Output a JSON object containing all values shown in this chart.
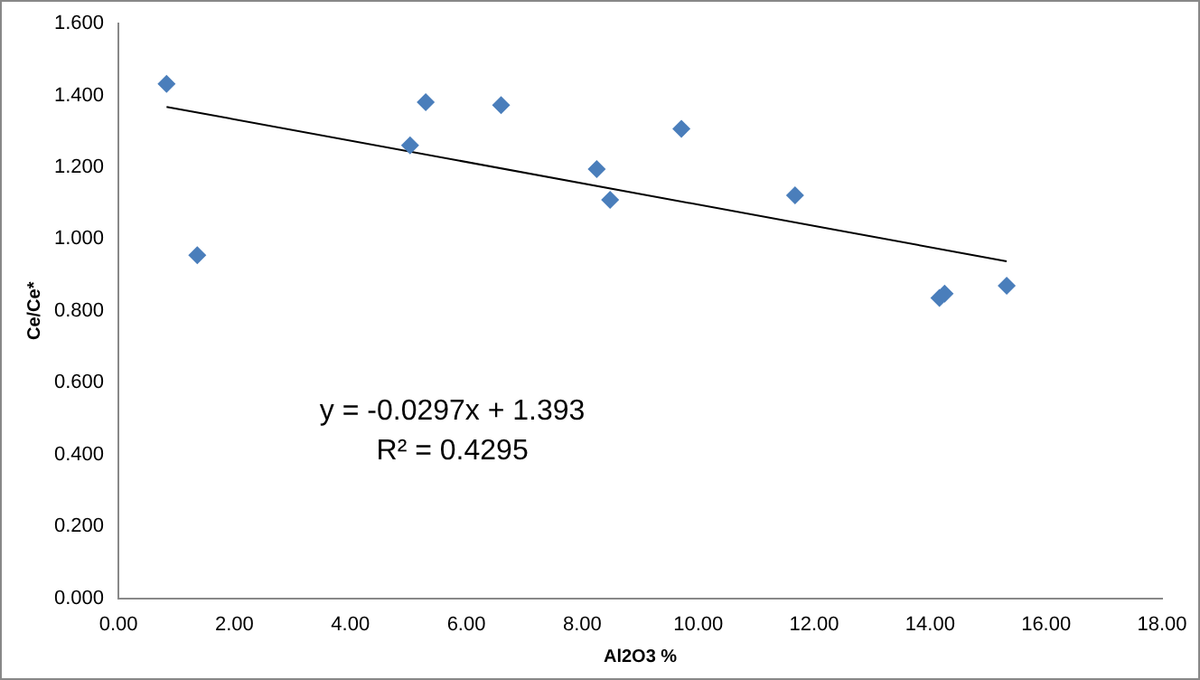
{
  "chart_data": {
    "type": "scatter",
    "xlabel": "Al2O3 %",
    "ylabel": "Ce/Ce*",
    "marker": "diamond",
    "grid": false,
    "legend": false,
    "xlim": [
      0,
      18
    ],
    "xticks": [
      {
        "value": 0,
        "label": "0.00"
      },
      {
        "value": 2,
        "label": "2.00"
      },
      {
        "value": 4,
        "label": "4.00"
      },
      {
        "value": 6,
        "label": "6.00"
      },
      {
        "value": 8,
        "label": "8.00"
      },
      {
        "value": 10,
        "label": "10.00"
      },
      {
        "value": 12,
        "label": "12.00"
      },
      {
        "value": 14,
        "label": "14.00"
      },
      {
        "value": 16,
        "label": "16.00"
      },
      {
        "value": 18,
        "label": "18.00"
      }
    ],
    "ylim": [
      0,
      1.6
    ],
    "yticks": [
      {
        "value": 0,
        "label": "0.000"
      },
      {
        "value": 0.2,
        "label": "0.200"
      },
      {
        "value": 0.4,
        "label": "0.400"
      },
      {
        "value": 0.6,
        "label": "0.600"
      },
      {
        "value": 0.8,
        "label": "0.800"
      },
      {
        "value": 1,
        "label": "1.000"
      },
      {
        "value": 1.2,
        "label": "1.200"
      },
      {
        "value": 1.4,
        "label": "1.400"
      },
      {
        "value": 1.6,
        "label": "1.600"
      }
    ],
    "series": [
      {
        "color": "#4a7ebb",
        "x": [
          0.83,
          1.36,
          5.03,
          5.3,
          6.6,
          8.25,
          8.48,
          9.71,
          11.67,
          14.16,
          14.25,
          15.32
        ],
        "values": [
          1.432,
          0.955,
          1.261,
          1.381,
          1.373,
          1.195,
          1.109,
          1.307,
          1.122,
          0.836,
          0.848,
          0.87
        ]
      },
      {
        "type": "line",
        "color": "#000000",
        "marker": "none",
        "x": [
          0.83,
          15.32
        ],
        "values": [
          1.368,
          0.938
        ]
      }
    ],
    "annotations": [
      "y = -0.0297x + 1.393",
      "R² = 0.4295"
    ]
  }
}
